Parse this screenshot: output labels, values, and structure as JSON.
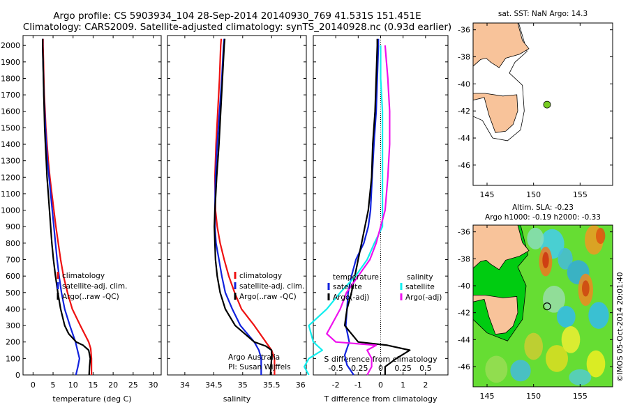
{
  "title": {
    "line1": "Argo profile: CS 5903934_104 28-Sep-2014 20140930_769 41.531S 151.451E",
    "line2": "Climatology: CARS2009. Satellite-adjusted climatology: synTS_20140928.nc (0.93d earlier)"
  },
  "colors": {
    "climatology": "#ee1111",
    "satellite": "#1122dd",
    "argo": "#000000",
    "cyan": "#11eeee",
    "magenta": "#ee11ee",
    "land": "#f8c39a",
    "dot": "#77cc22"
  },
  "depth_ticks": [
    "0",
    "100",
    "200",
    "300",
    "400",
    "500",
    "600",
    "700",
    "800",
    "900",
    "1000",
    "1100",
    "1200",
    "1300",
    "1400",
    "1500",
    "1600",
    "1700",
    "1800",
    "1900",
    "2000"
  ],
  "chart_data": [
    {
      "type": "line",
      "xlabel": "temperature (deg C)",
      "xticks": [
        "0",
        "5",
        "10",
        "15",
        "20",
        "25",
        "30"
      ],
      "xlim": [
        -2.5,
        32
      ],
      "ylim": [
        2060,
        0
      ],
      "legend": [
        "climatology",
        "satellite-adj. clim.",
        "Argo(..raw -QC)"
      ],
      "series": [
        {
          "name": "climatology",
          "depth": [
            0,
            100,
            160,
            200,
            300,
            400,
            500,
            600,
            700,
            800,
            900,
            1000,
            1100,
            1200,
            1300,
            1400,
            1500,
            1600,
            1700,
            1800,
            1900,
            2000,
            2040
          ],
          "values": [
            14.6,
            14.6,
            14.4,
            13.9,
            11.8,
            9.8,
            8.6,
            7.6,
            6.9,
            6.3,
            5.7,
            5.2,
            4.7,
            4.2,
            3.8,
            3.5,
            3.2,
            3.0,
            2.8,
            2.7,
            2.6,
            2.5,
            2.5
          ]
        },
        {
          "name": "satellite-adj. clim.",
          "depth": [
            0,
            50,
            100,
            160,
            200,
            300,
            400,
            500,
            600,
            700,
            800,
            900,
            1000,
            1100,
            1200,
            1300,
            1400,
            1500,
            1600,
            1700,
            1800,
            1900,
            2000,
            2040
          ],
          "values": [
            10.7,
            11.2,
            11.6,
            11.0,
            10.6,
            9.2,
            7.9,
            7.1,
            6.5,
            6.0,
            5.6,
            5.2,
            4.8,
            4.4,
            4.0,
            3.6,
            3.3,
            3.1,
            2.9,
            2.7,
            2.6,
            2.5,
            2.4,
            2.4
          ]
        },
        {
          "name": "Argo(..raw -QC)",
          "depth": [
            0,
            50,
            100,
            150,
            180,
            200,
            250,
            300,
            400,
            500,
            600,
            700,
            800,
            900,
            1000,
            1100,
            1200,
            1300,
            1400,
            1500,
            1600,
            1700,
            1800,
            1900,
            2000,
            2040
          ],
          "values": [
            14.0,
            14.1,
            14.3,
            13.9,
            12.5,
            10.8,
            8.9,
            7.9,
            6.9,
            6.2,
            5.6,
            5.1,
            4.7,
            4.4,
            4.1,
            3.8,
            3.5,
            3.3,
            3.1,
            2.9,
            2.8,
            2.7,
            2.6,
            2.5,
            2.4,
            2.4
          ]
        }
      ]
    },
    {
      "type": "line",
      "xlabel": "salinity",
      "xticks": [
        "34",
        "34.5",
        "35",
        "35.5",
        "36"
      ],
      "xlim": [
        33.7,
        36.1
      ],
      "ylim": [
        2060,
        0
      ],
      "legend": [
        "climatology",
        "satellite-adj. clim.",
        "Argo(..raw -QC)"
      ],
      "annotation": [
        "Argo Australia",
        "PI: Susan Wijffels"
      ],
      "series": [
        {
          "name": "climatology",
          "depth": [
            0,
            100,
            150,
            200,
            300,
            400,
            500,
            600,
            700,
            800,
            900,
            1000,
            1200,
            1400,
            1600,
            1800,
            2000,
            2040
          ],
          "values": [
            35.55,
            35.55,
            35.5,
            35.4,
            35.2,
            34.98,
            34.86,
            34.76,
            34.68,
            34.61,
            34.56,
            34.53,
            34.52,
            34.54,
            34.57,
            34.6,
            34.62,
            34.63
          ]
        },
        {
          "name": "satellite-adj. clim.",
          "depth": [
            0,
            100,
            150,
            200,
            300,
            400,
            500,
            600,
            700,
            800,
            900,
            1000,
            1200,
            1400,
            1600,
            1800,
            2000,
            2040
          ],
          "values": [
            35.32,
            35.32,
            35.28,
            35.2,
            34.96,
            34.82,
            34.7,
            34.64,
            34.59,
            34.54,
            34.52,
            34.52,
            34.53,
            34.56,
            34.6,
            34.64,
            34.67,
            34.68
          ]
        },
        {
          "name": "Argo(..raw -QC)",
          "depth": [
            0,
            100,
            150,
            175,
            200,
            300,
            400,
            500,
            600,
            700,
            800,
            900,
            1000,
            1200,
            1400,
            1600,
            1800,
            2000,
            2040
          ],
          "values": [
            35.48,
            35.5,
            35.5,
            35.4,
            35.2,
            34.87,
            34.7,
            34.61,
            34.56,
            34.53,
            34.52,
            34.51,
            34.52,
            34.55,
            34.59,
            34.62,
            34.65,
            34.68,
            34.69
          ]
        }
      ]
    },
    {
      "type": "line",
      "xlabel": "T difference from climatology",
      "x2label": "S difference from climatology",
      "xticks": [
        "-2",
        "-1",
        "0",
        "1",
        "2"
      ],
      "x2ticks": [
        "-0.5",
        "-0.25",
        "0",
        "0.25",
        "0.5"
      ],
      "xlim": [
        -3.0,
        3.0
      ],
      "ylim": [
        2060,
        0
      ],
      "legend_left_title": "temperature",
      "legend_right_title": "salinity",
      "legend": [
        "satellite",
        "Argo(-adj)",
        "satellite",
        "Argo(-adj)"
      ],
      "series": [
        {
          "name": "satellite",
          "quantity": "T",
          "depth": [
            0,
            60,
            120,
            200,
            300,
            400,
            500,
            600,
            700,
            800,
            900,
            1000,
            1200,
            1400,
            1600,
            1800,
            2000,
            2040
          ],
          "values": [
            -1.2,
            -1.5,
            -1.6,
            -1.4,
            -1.55,
            -1.5,
            -1.45,
            -1.3,
            -1.1,
            -0.75,
            -0.55,
            -0.45,
            -0.38,
            -0.3,
            -0.2,
            -0.15,
            -0.1,
            -0.1
          ]
        },
        {
          "name": "Argo(-adj)",
          "quantity": "T",
          "depth": [
            0,
            50,
            100,
            150,
            180,
            200,
            250,
            300,
            400,
            500,
            600,
            700,
            800,
            900,
            1000,
            1200,
            1400,
            1600,
            1800,
            2000,
            2040
          ],
          "values": [
            0.2,
            0.2,
            0.7,
            1.3,
            0.3,
            -1.0,
            -1.3,
            -1.6,
            -1.5,
            -1.3,
            -1.15,
            -1.0,
            -0.85,
            -0.7,
            -0.55,
            -0.4,
            -0.35,
            -0.25,
            -0.2,
            -0.15,
            -0.15
          ]
        },
        {
          "name": "satellite",
          "quantity": "S",
          "depth": [
            0,
            50,
            100,
            150,
            200,
            300,
            400,
            500,
            600,
            700,
            800,
            900,
            1000,
            1200,
            1400,
            1600,
            1800,
            2000
          ],
          "values": [
            -0.8,
            -0.85,
            -0.8,
            -0.65,
            -0.75,
            -0.8,
            -0.6,
            -0.45,
            -0.28,
            -0.15,
            -0.07,
            0.02,
            0.02,
            0.02,
            0.02,
            0.02,
            0.0,
            0.0
          ]
        },
        {
          "name": "Argo(-adj)",
          "quantity": "S",
          "depth": [
            0,
            50,
            100,
            150,
            180,
            200,
            250,
            300,
            400,
            500,
            600,
            700,
            800,
            900,
            1000,
            1200,
            1400,
            1600,
            1800,
            2000
          ],
          "values": [
            -0.15,
            -0.1,
            -0.1,
            -0.15,
            -0.05,
            -0.5,
            -0.6,
            -0.55,
            -0.45,
            -0.38,
            -0.25,
            -0.12,
            -0.05,
            0.0,
            0.05,
            0.08,
            0.1,
            0.1,
            0.08,
            0.05
          ]
        }
      ]
    },
    {
      "type": "map",
      "title": "sat. SST: NaN Argo: 14.3",
      "xticks": [
        "145",
        "150",
        "155"
      ],
      "yticks": [
        "-36",
        "-38",
        "-40",
        "-42",
        "-44",
        "-46"
      ],
      "xlim": [
        143.5,
        158.5
      ],
      "ylim": [
        -47.5,
        -35.5
      ],
      "argo_position": {
        "lon": 151.451,
        "lat": -41.531
      }
    },
    {
      "type": "map",
      "title": "Altim. SLA: -0.23",
      "subtitle": "Argo h1000: -0.19 h2000: -0.33",
      "xticks": [
        "145",
        "150",
        "155"
      ],
      "yticks": [
        "-36",
        "-38",
        "-40",
        "-42",
        "-44",
        "-46"
      ],
      "xlim": [
        143.5,
        158.5
      ],
      "ylim": [
        -47.5,
        -35.5
      ],
      "argo_position": {
        "lon": 151.451,
        "lat": -41.531
      }
    }
  ],
  "credit": "©IMOS 05-Oct-2014 20:01:40"
}
